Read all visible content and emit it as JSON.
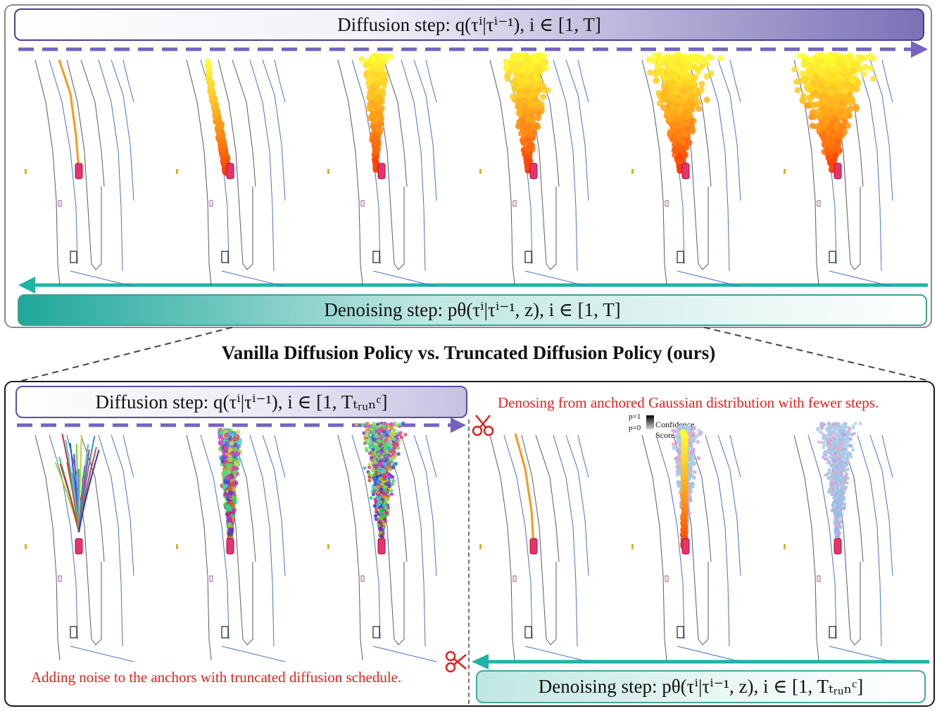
{
  "title": "Vanilla Diffusion Policy vs. Truncated Diffusion Policy (ours)",
  "top_panel": {
    "diffusion_step": "Diffusion step: q(τⁱ|τⁱ⁻¹), i ∈ [1, T]",
    "denoising_step": "Denoising step: pθ(τⁱ|τⁱ⁻¹, z), i ∈ [1, T]"
  },
  "bottom_panel": {
    "diffusion_step": "Diffusion step: q(τⁱ|τⁱ⁻¹), i ∈ [1, Tₜᵣᵤₙᶜ]",
    "denoising_step": "Denoising step: pθ(τⁱ|τⁱ⁻¹, z), i ∈ [1, Tₜᵣᵤₙᶜ]",
    "left_caption": "Adding noise to the anchors with truncated diffusion schedule.",
    "right_caption": "Denosing from anchored Gaussian distribution with fewer steps.",
    "confidence": {
      "p_high": "p=1",
      "p_low": "p=0",
      "label": "Confidence Score"
    }
  },
  "colors": {
    "diffusion_arrow": "#7464c0",
    "denoising_arrow": "#1fb3a5",
    "scissors": "#e0221d",
    "ego_car": "#e8336a",
    "lane_blue": "#4a72c8",
    "lane_gray": "#5a5a66"
  },
  "icons": [
    "scissors-icon",
    "car-icon",
    "arrow-right-icon",
    "arrow-left-icon"
  ]
}
